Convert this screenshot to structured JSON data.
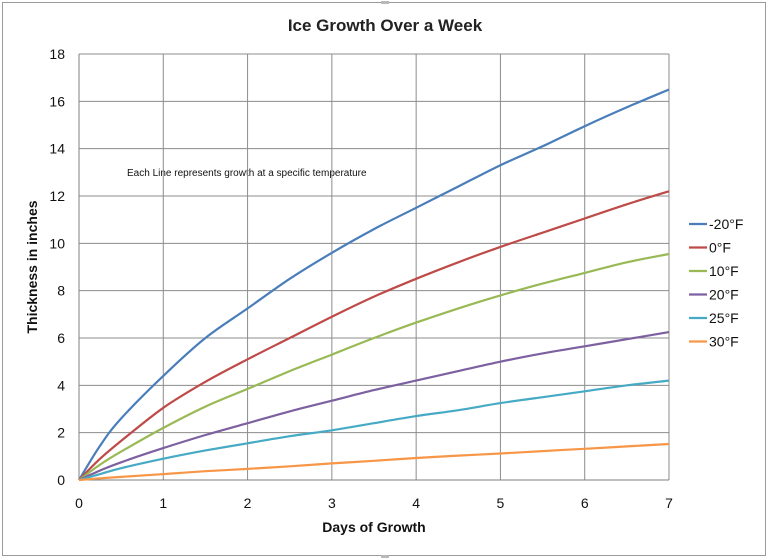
{
  "chart_data": {
    "type": "line",
    "title": "Ice Growth Over a Week",
    "xlabel": "Days of Growth",
    "ylabel": "Thickness in inches",
    "xlim": [
      0,
      7
    ],
    "ylim": [
      0,
      18
    ],
    "xticks": [
      0,
      1,
      2,
      3,
      4,
      5,
      6,
      7
    ],
    "yticks": [
      0,
      2,
      4,
      6,
      8,
      10,
      12,
      14,
      16,
      18
    ],
    "grid": true,
    "legend_position": "right",
    "annotation": "Each Line represents growth at a specific temperature",
    "x": [
      0,
      0.25,
      0.5,
      1,
      1.5,
      2,
      2.5,
      3,
      3.5,
      4,
      4.5,
      5,
      5.5,
      6,
      6.5,
      7
    ],
    "series": [
      {
        "name": "-20°F",
        "color": "#4a7ebb",
        "values": [
          0,
          1.45,
          2.6,
          4.4,
          6.0,
          7.25,
          8.5,
          9.6,
          10.6,
          11.5,
          12.4,
          13.3,
          14.1,
          14.95,
          15.75,
          16.5
        ]
      },
      {
        "name": "0°F",
        "color": "#be4b48",
        "values": [
          0,
          0.9,
          1.65,
          3.05,
          4.15,
          5.1,
          6.0,
          6.9,
          7.75,
          8.5,
          9.2,
          9.85,
          10.45,
          11.05,
          11.65,
          12.2
        ]
      },
      {
        "name": "10°F",
        "color": "#98b954",
        "values": [
          0,
          0.65,
          1.2,
          2.2,
          3.1,
          3.85,
          4.6,
          5.3,
          6.0,
          6.65,
          7.25,
          7.8,
          8.3,
          8.75,
          9.2,
          9.55
        ]
      },
      {
        "name": "20°F",
        "color": "#7d60a0",
        "values": [
          0,
          0.4,
          0.75,
          1.35,
          1.9,
          2.4,
          2.9,
          3.35,
          3.8,
          4.2,
          4.6,
          5.0,
          5.35,
          5.65,
          5.95,
          6.25
        ]
      },
      {
        "name": "25°F",
        "color": "#46aac5",
        "values": [
          0,
          0.25,
          0.5,
          0.9,
          1.25,
          1.55,
          1.85,
          2.1,
          2.4,
          2.7,
          2.95,
          3.25,
          3.5,
          3.75,
          4.0,
          4.2
        ]
      },
      {
        "name": "30°F",
        "color": "#f79646",
        "values": [
          0,
          0.07,
          0.13,
          0.25,
          0.37,
          0.47,
          0.58,
          0.7,
          0.81,
          0.93,
          1.03,
          1.12,
          1.22,
          1.32,
          1.42,
          1.52
        ]
      }
    ]
  }
}
